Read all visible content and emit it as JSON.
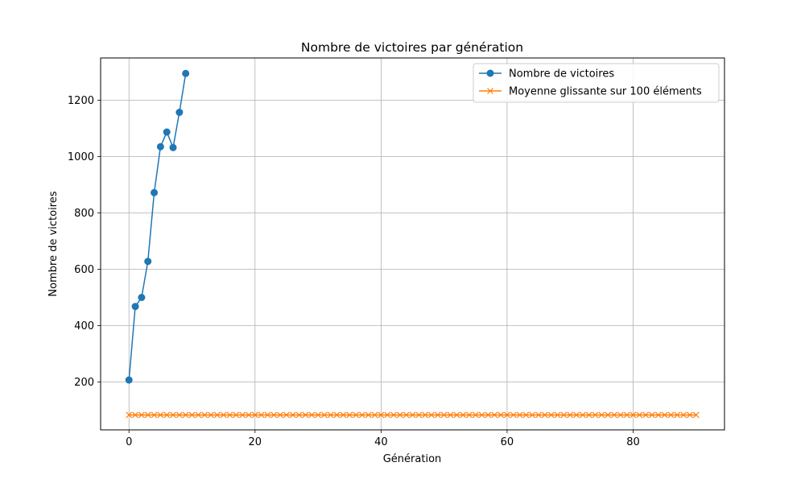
{
  "chart_data": {
    "type": "line",
    "title": "Nombre de victoires par génération",
    "xlabel": "Génération",
    "ylabel": "Nombre de victoires",
    "xlim": [
      -4.5,
      94.5
    ],
    "ylim": [
      30,
      1350
    ],
    "xticks": [
      0,
      20,
      40,
      60,
      80
    ],
    "yticks": [
      200,
      400,
      600,
      800,
      1000,
      1200
    ],
    "grid": true,
    "legend_position": "top-right",
    "series": [
      {
        "name": "Nombre de victoires",
        "color": "#1f77b4",
        "marker": "circle",
        "x": [
          0,
          1,
          2,
          3,
          4,
          5,
          6,
          7,
          8,
          9
        ],
        "y": [
          207,
          468,
          500,
          628,
          872,
          1035,
          1087,
          1032,
          1157,
          1295
        ]
      },
      {
        "name": "Moyenne glissante sur 100 éléments",
        "color": "#ff7f0e",
        "marker": "x",
        "x_start": 0,
        "x_end": 90,
        "constant_y": 83
      }
    ]
  }
}
